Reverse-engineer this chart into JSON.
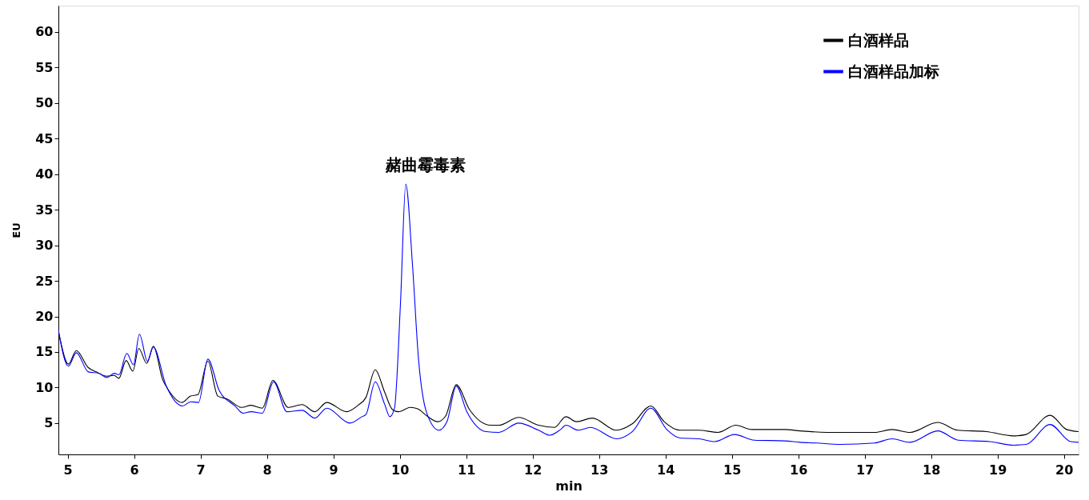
{
  "chart_data": {
    "type": "line",
    "xlabel": "min",
    "ylabel": "EU",
    "xlim": [
      4.86,
      20.22
    ],
    "ylim": [
      0.6,
      63.7
    ],
    "xticks": [
      5,
      6,
      7,
      8,
      9,
      10,
      11,
      12,
      13,
      14,
      15,
      16,
      17,
      18,
      19,
      20
    ],
    "yticks": [
      5,
      10,
      15,
      20,
      25,
      30,
      35,
      40,
      45,
      50,
      55,
      60
    ],
    "grid": false,
    "legend": "top right",
    "marker": "none",
    "line_style": "solid",
    "annotations": [
      "赭曲霉毒素"
    ],
    "series": [
      {
        "name": "白酒样品",
        "color": "#000000",
        "x": [
          4.86,
          5.01,
          5.13,
          5.31,
          5.43,
          5.59,
          5.7,
          5.77,
          5.88,
          5.98,
          6.07,
          6.19,
          6.29,
          6.43,
          6.52,
          6.72,
          6.85,
          6.96,
          7.11,
          7.26,
          7.4,
          7.62,
          7.76,
          7.93,
          8.09,
          8.32,
          8.53,
          8.72,
          8.9,
          9.2,
          9.37,
          9.49,
          9.63,
          9.77,
          9.89,
          9.98,
          10.16,
          10.27,
          10.41,
          10.57,
          10.69,
          10.85,
          11.05,
          11.37,
          11.49,
          11.79,
          12.09,
          12.33,
          12.5,
          12.66,
          12.9,
          13.26,
          13.5,
          13.78,
          13.98,
          14.22,
          14.5,
          14.79,
          15.06,
          15.3,
          15.79,
          16.03,
          16.43,
          17.15,
          17.41,
          17.68,
          18.1,
          18.4,
          18.83,
          19.24,
          19.43,
          19.79,
          20.04,
          20.22
        ],
        "values": [
          18.0,
          13.3,
          15.2,
          12.8,
          12.2,
          11.6,
          11.7,
          11.3,
          13.8,
          12.3,
          15.5,
          13.4,
          15.8,
          11.1,
          9.6,
          7.9,
          8.8,
          9.0,
          13.7,
          8.8,
          8.4,
          7.2,
          7.5,
          7.1,
          11.0,
          7.2,
          7.6,
          6.6,
          7.9,
          6.6,
          7.5,
          8.6,
          12.5,
          9.4,
          6.9,
          6.6,
          7.2,
          7.0,
          6.0,
          5.2,
          6.0,
          10.4,
          6.9,
          4.7,
          4.7,
          5.8,
          4.7,
          4.4,
          5.9,
          5.2,
          5.7,
          4.0,
          4.9,
          7.4,
          5.2,
          4.0,
          4.0,
          3.7,
          4.7,
          4.1,
          4.1,
          3.9,
          3.7,
          3.7,
          4.1,
          3.7,
          5.1,
          4.0,
          3.8,
          3.2,
          3.4,
          6.1,
          4.1,
          3.8
        ]
      },
      {
        "name": "白酒样品加标",
        "color": "#0000ff",
        "x": [
          4.86,
          5.01,
          5.13,
          5.31,
          5.47,
          5.59,
          5.7,
          5.77,
          5.89,
          5.99,
          6.08,
          6.2,
          6.29,
          6.48,
          6.73,
          6.85,
          6.97,
          7.11,
          7.28,
          7.52,
          7.64,
          7.76,
          7.93,
          8.1,
          8.3,
          8.53,
          8.72,
          8.9,
          9.25,
          9.43,
          9.49,
          9.63,
          9.77,
          9.85,
          9.92,
          10.01,
          10.09,
          10.19,
          10.28,
          10.41,
          10.59,
          10.71,
          10.85,
          11.01,
          11.3,
          11.49,
          11.79,
          12.09,
          12.26,
          12.42,
          12.5,
          12.69,
          12.87,
          13.26,
          13.5,
          13.78,
          14.02,
          14.22,
          14.5,
          14.74,
          15.04,
          15.34,
          15.79,
          16.03,
          16.27,
          16.63,
          17.15,
          17.41,
          17.68,
          18.1,
          18.41,
          18.88,
          19.24,
          19.43,
          19.79,
          20.1,
          20.22
        ],
        "values": [
          18.0,
          13.0,
          14.9,
          12.2,
          12.0,
          11.4,
          12.0,
          11.8,
          14.8,
          13.2,
          17.5,
          13.7,
          15.7,
          10.3,
          7.4,
          8.0,
          7.9,
          14.0,
          9.6,
          7.4,
          6.4,
          6.6,
          6.4,
          10.8,
          6.6,
          6.8,
          5.7,
          7.1,
          5.0,
          5.9,
          6.2,
          10.8,
          7.7,
          5.9,
          7.1,
          21.8,
          38.6,
          27.4,
          14.2,
          6.3,
          4.0,
          5.2,
          10.2,
          6.6,
          3.8,
          3.7,
          5.0,
          4.0,
          3.3,
          4.1,
          4.7,
          4.0,
          4.4,
          2.8,
          3.8,
          7.1,
          4.1,
          2.9,
          2.8,
          2.4,
          3.4,
          2.6,
          2.5,
          2.3,
          2.2,
          2.0,
          2.2,
          2.8,
          2.3,
          3.9,
          2.6,
          2.4,
          1.9,
          2.0,
          4.8,
          2.4,
          2.3
        ]
      }
    ]
  }
}
